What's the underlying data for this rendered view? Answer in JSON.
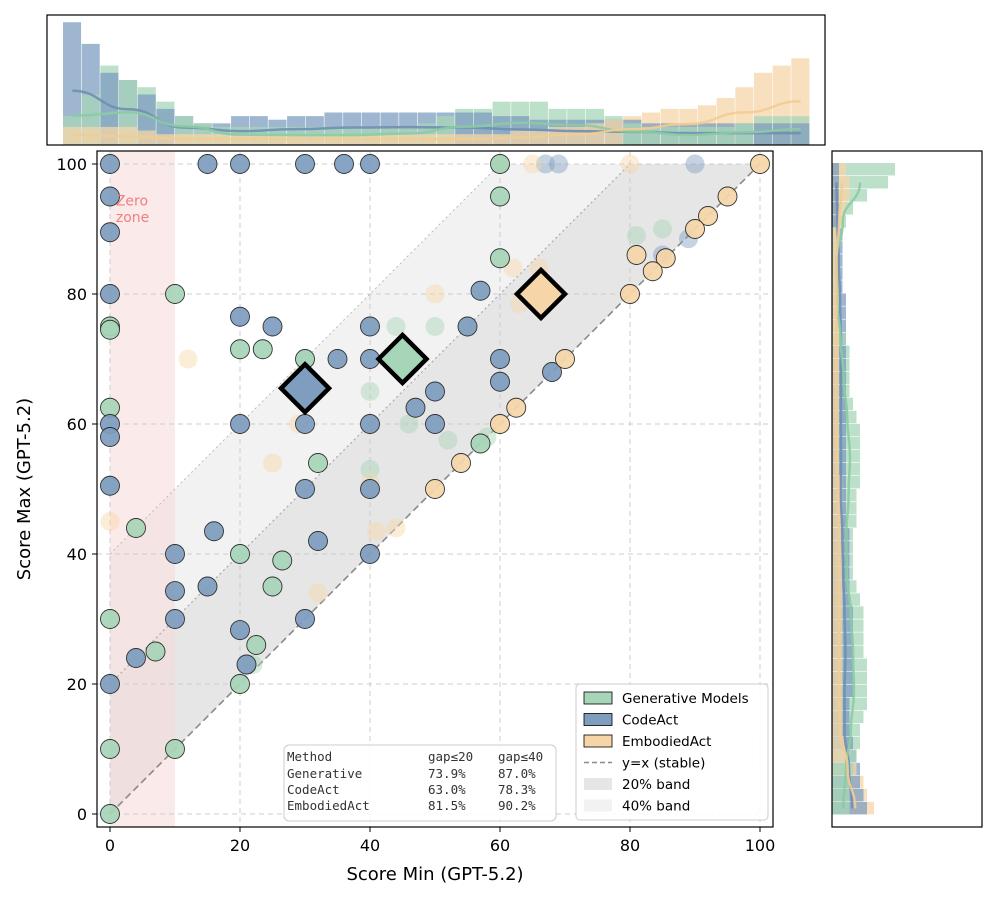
{
  "chart_data": {
    "type": "scatter",
    "xlabel": "Score Min (GPT-5.2)",
    "ylabel": "Score Max (GPT-5.2)",
    "xlim": [
      -2,
      102
    ],
    "ylim": [
      -2,
      102
    ],
    "xticks": [
      "0",
      "20",
      "40",
      "60",
      "80",
      "100"
    ],
    "yticks": [
      "0",
      "20",
      "40",
      "60",
      "80",
      "100"
    ],
    "grid": true,
    "zero_zone": {
      "label_line1": "Zero",
      "label_line2": "zone",
      "x_range": [
        0,
        10
      ]
    },
    "bands": [
      {
        "name": "20% band",
        "gap": 20
      },
      {
        "name": "40% band",
        "gap": 40
      }
    ],
    "legend": {
      "placement": "bottom-right",
      "entries": [
        "Generative Models",
        "CodeAct",
        "EmbodiedAct",
        "y=x (stable)",
        "20% band",
        "40% band"
      ]
    },
    "colors": {
      "generative": "#a7d5b8",
      "codeact": "#7e9dbf",
      "embodied": "#f6d6a8",
      "zero_zone": "#f8d8d8",
      "zero_label": "#f08080"
    },
    "series": [
      {
        "name": "Generative Models",
        "mean": [
          45,
          70
        ],
        "points": [
          [
            0,
            0
          ],
          [
            0,
            10
          ],
          [
            10,
            10
          ],
          [
            0,
            30
          ],
          [
            7,
            25
          ],
          [
            4,
            44
          ],
          [
            0,
            62.5
          ],
          [
            0,
            75
          ],
          [
            0,
            74.5
          ],
          [
            10,
            80
          ],
          [
            20,
            40
          ],
          [
            20,
            20
          ],
          [
            22.5,
            26
          ],
          [
            26.5,
            39
          ],
          [
            25,
            35
          ],
          [
            32,
            54
          ],
          [
            30,
            70
          ],
          [
            20,
            71.5
          ],
          [
            23.5,
            71.5
          ],
          [
            57,
            57
          ],
          [
            60,
            85.5
          ],
          [
            60,
            95
          ],
          [
            60,
            100
          ]
        ],
        "faded": [
          [
            22,
            23
          ],
          [
            44,
            75
          ],
          [
            40,
            65
          ],
          [
            46,
            60
          ],
          [
            50,
            75
          ],
          [
            52,
            57.5
          ],
          [
            58,
            58
          ],
          [
            40,
            53
          ],
          [
            81,
            89
          ],
          [
            85,
            90
          ],
          [
            0,
            50.5
          ]
        ]
      },
      {
        "name": "CodeAct",
        "mean": [
          30,
          65.5
        ],
        "points": [
          [
            0,
            100
          ],
          [
            0,
            95
          ],
          [
            0,
            89.5
          ],
          [
            0,
            80
          ],
          [
            0,
            60
          ],
          [
            0,
            58
          ],
          [
            0,
            50.5
          ],
          [
            15,
            100
          ],
          [
            20,
            100
          ],
          [
            30,
            100
          ],
          [
            36,
            100
          ],
          [
            40,
            100
          ],
          [
            20,
            76.5
          ],
          [
            25,
            75
          ],
          [
            20,
            60
          ],
          [
            30,
            60
          ],
          [
            35,
            70
          ],
          [
            40,
            70
          ],
          [
            40,
            75
          ],
          [
            47,
            62.5
          ],
          [
            50,
            65
          ],
          [
            50,
            60
          ],
          [
            40,
            60
          ],
          [
            30,
            50
          ],
          [
            40,
            50
          ],
          [
            32,
            42
          ],
          [
            40,
            40
          ],
          [
            30,
            30
          ],
          [
            20,
            28.3
          ],
          [
            55,
            75
          ],
          [
            57,
            80.5
          ],
          [
            60,
            70
          ],
          [
            60,
            66.5
          ],
          [
            68,
            68
          ],
          [
            10,
            40
          ],
          [
            10,
            34.3
          ],
          [
            10,
            30
          ],
          [
            16,
            43.5
          ],
          [
            15,
            35
          ],
          [
            0,
            20
          ],
          [
            4,
            24
          ],
          [
            21,
            23
          ]
        ],
        "faded": [
          [
            30,
            70
          ],
          [
            60,
            100
          ],
          [
            67,
            100
          ],
          [
            69,
            100
          ],
          [
            90,
            100
          ],
          [
            85,
            86
          ],
          [
            89,
            88.5
          ]
        ]
      },
      {
        "name": "EmbodiedAct",
        "mean": [
          66.3,
          80
        ],
        "points": [
          [
            100,
            100
          ],
          [
            95,
            95
          ],
          [
            92,
            92
          ],
          [
            90,
            90
          ],
          [
            85.5,
            85.5
          ],
          [
            83.5,
            83.5
          ],
          [
            81,
            86
          ],
          [
            80,
            80
          ],
          [
            70,
            70
          ],
          [
            62.5,
            62.5
          ],
          [
            60,
            60
          ],
          [
            54,
            54
          ],
          [
            50,
            50
          ]
        ],
        "faded": [
          [
            80,
            100
          ],
          [
            65,
            100
          ],
          [
            63,
            78.5
          ],
          [
            62,
            84
          ],
          [
            66,
            84
          ],
          [
            50,
            80
          ],
          [
            44,
            44
          ],
          [
            41,
            43.5
          ],
          [
            32,
            34
          ],
          [
            25,
            54
          ],
          [
            12,
            70
          ],
          [
            0,
            45
          ],
          [
            29,
            60
          ],
          [
            60,
            100
          ],
          [
            40,
            51
          ]
        ]
      }
    ],
    "table": {
      "header": [
        "Method",
        "gap≤20",
        "gap≤40"
      ],
      "rows": [
        [
          "Generative",
          "73.9%",
          "87.0%"
        ],
        [
          "CodeAct",
          "63.0%",
          "78.3%"
        ],
        [
          "EmbodiedAct",
          "81.5%",
          "90.2%"
        ]
      ]
    },
    "top_histogram": {
      "bins": 40,
      "generative": [
        0.08,
        0.14,
        0.22,
        0.18,
        0.16,
        0.12,
        0.08,
        0.06,
        0.05,
        0.05,
        0.05,
        0.05,
        0.05,
        0.05,
        0.05,
        0.05,
        0.05,
        0.05,
        0.05,
        0.06,
        0.08,
        0.1,
        0.1,
        0.12,
        0.12,
        0.12,
        0.1,
        0.1,
        0.1,
        0.08,
        0.06,
        0.05,
        0.05,
        0.05,
        0.05,
        0.05,
        0.06,
        0.08,
        0.08,
        0.08
      ],
      "codeact": [
        0.34,
        0.28,
        0.2,
        0.18,
        0.14,
        0.1,
        0.08,
        0.06,
        0.06,
        0.08,
        0.08,
        0.07,
        0.08,
        0.08,
        0.09,
        0.09,
        0.09,
        0.09,
        0.09,
        0.09,
        0.09,
        0.09,
        0.09,
        0.08,
        0.08,
        0.07,
        0.07,
        0.07,
        0.07,
        0.07,
        0.07,
        0.06,
        0.06,
        0.06,
        0.06,
        0.06,
        0.06,
        0.06,
        0.06,
        0.06
      ],
      "embodied": [
        0.05,
        0.05,
        0.05,
        0.05,
        0.04,
        0.03,
        0.03,
        0.03,
        0.03,
        0.03,
        0.03,
        0.03,
        0.03,
        0.03,
        0.03,
        0.03,
        0.03,
        0.03,
        0.03,
        0.03,
        0.03,
        0.03,
        0.03,
        0.03,
        0.04,
        0.04,
        0.05,
        0.05,
        0.06,
        0.07,
        0.08,
        0.09,
        0.1,
        0.1,
        0.11,
        0.13,
        0.16,
        0.2,
        0.22,
        0.24
      ]
    },
    "right_histogram": {
      "bins": 50,
      "generative": [
        0.18,
        0.16,
        0.1,
        0.06,
        0.04,
        0.02,
        0.02,
        0.02,
        0.02,
        0.02,
        0.02,
        0.02,
        0.03,
        0.04,
        0.05,
        0.05,
        0.05,
        0.05,
        0.06,
        0.07,
        0.08,
        0.08,
        0.08,
        0.08,
        0.08,
        0.07,
        0.07,
        0.07,
        0.06,
        0.06,
        0.06,
        0.06,
        0.07,
        0.08,
        0.09,
        0.09,
        0.09,
        0.09,
        0.1,
        0.1,
        0.1,
        0.1,
        0.09,
        0.08,
        0.08,
        0.07,
        0.06,
        0.05,
        0.05,
        0.05
      ],
      "codeact": [
        0.02,
        0.02,
        0.02,
        0.02,
        0.02,
        0.03,
        0.03,
        0.03,
        0.03,
        0.03,
        0.04,
        0.04,
        0.04,
        0.04,
        0.04,
        0.04,
        0.04,
        0.04,
        0.04,
        0.04,
        0.04,
        0.04,
        0.04,
        0.04,
        0.04,
        0.04,
        0.04,
        0.04,
        0.05,
        0.05,
        0.05,
        0.05,
        0.05,
        0.05,
        0.06,
        0.06,
        0.06,
        0.06,
        0.06,
        0.06,
        0.06,
        0.05,
        0.05,
        0.05,
        0.06,
        0.07,
        0.08,
        0.08,
        0.09,
        0.1
      ],
      "embodied": [
        0.04,
        0.05,
        0.05,
        0.04,
        0.03,
        0.02,
        0.02,
        0.02,
        0.02,
        0.02,
        0.02,
        0.02,
        0.02,
        0.02,
        0.02,
        0.02,
        0.02,
        0.02,
        0.02,
        0.02,
        0.02,
        0.02,
        0.02,
        0.02,
        0.03,
        0.03,
        0.03,
        0.03,
        0.03,
        0.03,
        0.03,
        0.03,
        0.03,
        0.03,
        0.03,
        0.03,
        0.03,
        0.03,
        0.03,
        0.03,
        0.03,
        0.03,
        0.03,
        0.03,
        0.04,
        0.05,
        0.07,
        0.09,
        0.1,
        0.12
      ]
    }
  }
}
